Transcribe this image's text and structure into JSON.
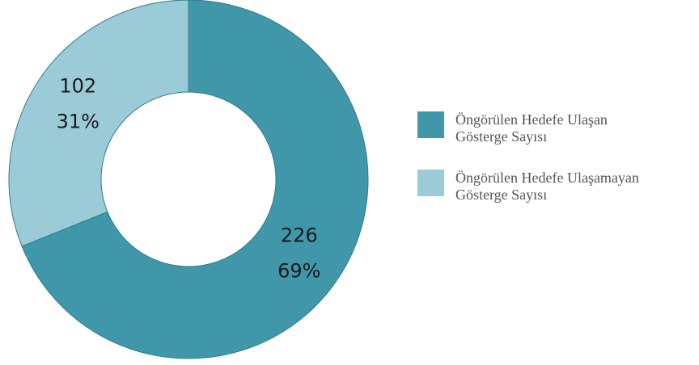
{
  "chart_data": {
    "type": "donut",
    "categories": [
      "Öngörülen Hedefe Ulaşan Gösterge Sayısı",
      "Öngörülen Hedefe Ulaşamayan Gösterge Sayısı"
    ],
    "values": [
      226,
      102
    ],
    "percent_labels": [
      "69%",
      "31%"
    ],
    "colors": [
      "#4197aa",
      "#9ccbd8"
    ],
    "legend": "right"
  }
}
